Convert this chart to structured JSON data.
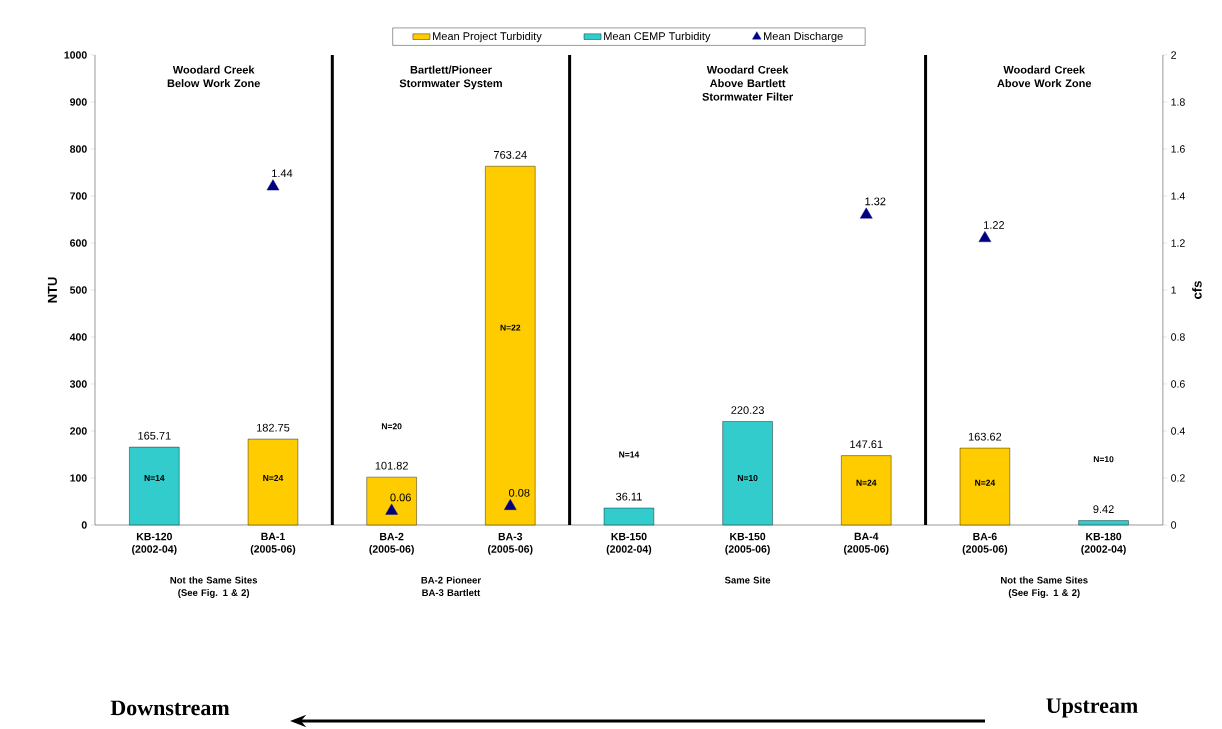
{
  "chart_data": {
    "type": "bar",
    "categories": [
      "KB-120 (2002-04)",
      "BA-1 (2005-06)",
      "BA-2 (2005-06)",
      "BA-3 (2005-06)",
      "KB-150 (2002-04)",
      "KB-150 (2005-06)",
      "BA-4 (2005-06)",
      "BA-6 (2005-06)",
      "KB-180 (2002-04)"
    ],
    "series": [
      {
        "name": "Mean Project Turbidity",
        "color": "#ffcc00",
        "values": [
          null,
          182.75,
          101.82,
          763.24,
          null,
          null,
          147.61,
          163.62,
          null
        ]
      },
      {
        "name": "Mean CEMP Turbidity",
        "color": "#33cccc",
        "values": [
          165.71,
          null,
          null,
          null,
          36.11,
          220.23,
          null,
          null,
          9.42
        ]
      },
      {
        "name": "Mean Discharge",
        "type": "scatter",
        "axis": "y2",
        "marker": "triangle",
        "color": "#000080",
        "values": [
          null,
          1.44,
          0.06,
          0.08,
          null,
          null,
          1.32,
          1.22,
          null
        ]
      }
    ],
    "ylabel": "NTU",
    "y2label": "cfs",
    "ylim": [
      0,
      1000
    ],
    "yticks": [
      0,
      100,
      200,
      300,
      400,
      500,
      600,
      700,
      800,
      900,
      1000
    ],
    "y2lim": [
      0,
      2
    ],
    "y2ticks": [
      0,
      0.2,
      0.4,
      0.6,
      0.8,
      1,
      1.2,
      1.4,
      1.6,
      1.8,
      2
    ],
    "data_labels": true,
    "legend": "top",
    "annotations": [
      "Woodard Creek Below Work Zone",
      "Bartlett/Pioneer Stormwater System",
      "Woodard Creek Above Bartlett Stormwater Filter",
      "Woodard Creek Above Work Zone",
      "Not the Same Sites (See Fig. 1 & 2)",
      "BA-2 Pioneer BA-3 Bartlett",
      "Same Site",
      "Not the Same Sites (See Fig. 1 & 2)",
      "N=14",
      "N=24",
      "N=20",
      "N=22",
      "N=14",
      "N=10",
      "N=24",
      "N=24",
      "N=10",
      "Downstream",
      "Upstream"
    ]
  }
}
